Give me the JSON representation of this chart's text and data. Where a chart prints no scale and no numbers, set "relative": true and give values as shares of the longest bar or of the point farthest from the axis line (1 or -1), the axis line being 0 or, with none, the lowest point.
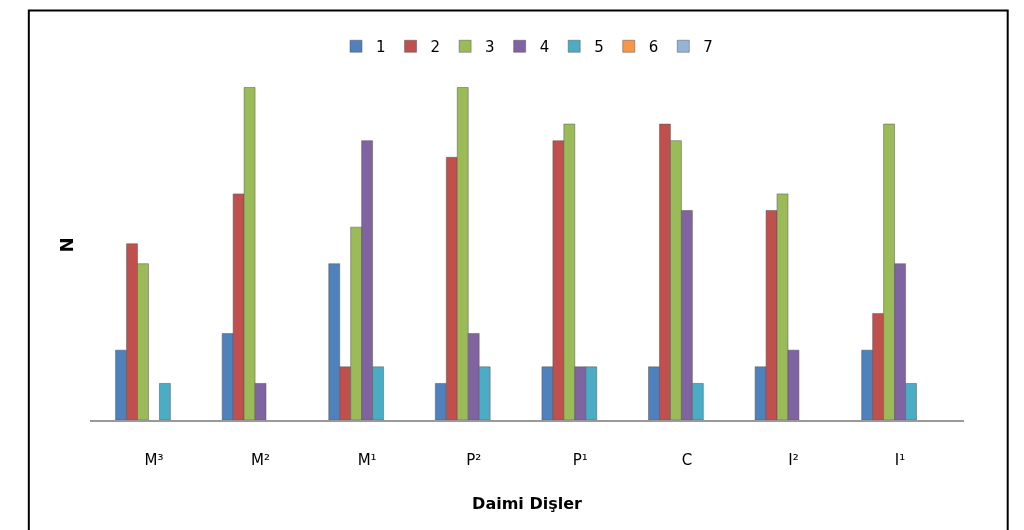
{
  "chart_data": {
    "type": "bar",
    "relative": true,
    "xlabel": "Daimi Dişler",
    "ylabel": "N",
    "legend": "top",
    "categories": [
      "M³",
      "M²",
      "M¹",
      "P²",
      "P¹",
      "C",
      "I²",
      "I¹"
    ],
    "series": [
      {
        "name": "1",
        "color": "#4f81bd",
        "values": [
          0.21,
          0.26,
          0.47,
          0.11,
          0.16,
          0.16,
          0.16,
          0.21
        ]
      },
      {
        "name": "2",
        "color": "#c0504d",
        "values": [
          0.53,
          0.68,
          0.16,
          0.79,
          0.84,
          0.89,
          0.63,
          0.32
        ]
      },
      {
        "name": "3",
        "color": "#9bbb59",
        "values": [
          0.47,
          1.0,
          0.58,
          1.0,
          0.89,
          0.84,
          0.68,
          0.89
        ]
      },
      {
        "name": "4",
        "color": "#8064a2",
        "values": [
          null,
          0.11,
          0.84,
          0.26,
          0.16,
          0.63,
          0.21,
          0.47
        ]
      },
      {
        "name": "5",
        "color": "#4bacc6",
        "values": [
          0.11,
          null,
          0.16,
          0.16,
          0.16,
          0.11,
          null,
          0.11
        ]
      },
      {
        "name": "6",
        "color": "#f79646",
        "values": [
          null,
          null,
          null,
          null,
          null,
          null,
          null,
          null
        ]
      },
      {
        "name": "7",
        "color": "#95b3d7",
        "values": [
          null,
          null,
          null,
          null,
          null,
          null,
          null,
          null
        ]
      }
    ]
  }
}
